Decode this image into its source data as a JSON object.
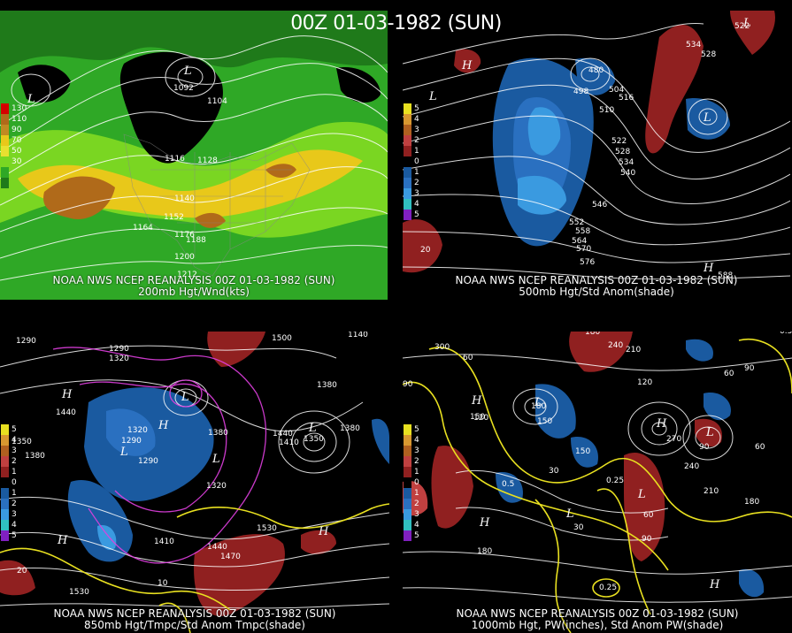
{
  "title": "00Z 01-03-1982 (SUN)",
  "panels": [
    {
      "caption1": "NOAA NWS NCEP REANALYSIS 00Z 01-03-1982 (SUN)",
      "caption2": "200mb Hgt/Wnd(kts)",
      "legend": [
        {
          "label": "130",
          "color": "#d40000"
        },
        {
          "label": "110",
          "color": "#b06a1a"
        },
        {
          "label": "90",
          "color": "#c08a22"
        },
        {
          "label": "70",
          "color": "#e8c81a"
        },
        {
          "label": "50",
          "color": "#e8e030"
        },
        {
          "label": "30",
          "color": "#7ad622"
        },
        {
          "label": "",
          "color": "#2fa826"
        },
        {
          "label": "",
          "color": "#1f7a1a"
        }
      ],
      "contours": [
        "1092",
        "1104",
        "1116",
        "1128",
        "1140",
        "1152",
        "1164",
        "1176",
        "1188",
        "1200",
        "1212"
      ]
    },
    {
      "caption1": "NOAA NWS NCEP REANALYSIS 00Z 01-03-1982 (SUN)",
      "caption2": "500mb Hgt/Std Anom(shade)",
      "legend": [
        {
          "label": "5",
          "color": "#e8e020"
        },
        {
          "label": "4",
          "color": "#d89830"
        },
        {
          "label": "3",
          "color": "#b06020"
        },
        {
          "label": "2",
          "color": "#c04040"
        },
        {
          "label": "1",
          "color": "#902020"
        },
        {
          "label": "0",
          "color": "#000"
        },
        {
          "label": "1",
          "color": "#1a5aa0"
        },
        {
          "label": "2",
          "color": "#2a70c0"
        },
        {
          "label": "3",
          "color": "#3a9ae0"
        },
        {
          "label": "4",
          "color": "#30c0c0"
        },
        {
          "label": "5",
          "color": "#8020c0"
        }
      ],
      "contours": [
        "498",
        "504",
        "510",
        "516",
        "522",
        "528",
        "534",
        "540",
        "546",
        "552",
        "558",
        "564",
        "570",
        "576",
        "588"
      ]
    },
    {
      "caption1": "NOAA NWS NCEP REANALYSIS 00Z 01-03-1982 (SUN)",
      "caption2": "850mb Hgt/Tmpc/Std Anom Tmpc(shade)",
      "legend": [
        {
          "label": "5",
          "color": "#e8e020"
        },
        {
          "label": "4",
          "color": "#d89830"
        },
        {
          "label": "3",
          "color": "#b06020"
        },
        {
          "label": "2",
          "color": "#c04040"
        },
        {
          "label": "1",
          "color": "#902020"
        },
        {
          "label": "0",
          "color": "#000"
        },
        {
          "label": "1",
          "color": "#1a5aa0"
        },
        {
          "label": "2",
          "color": "#2a70c0"
        },
        {
          "label": "3",
          "color": "#3a9ae0"
        },
        {
          "label": "4",
          "color": "#30c0c0"
        },
        {
          "label": "5",
          "color": "#8020c0"
        }
      ],
      "contours": [
        "1290",
        "1320",
        "1350",
        "1380",
        "1410",
        "1440",
        "1470",
        "1500",
        "1530"
      ]
    },
    {
      "caption1": "NOAA NWS NCEP REANALYSIS 00Z 01-03-1982 (SUN)",
      "caption2": "1000mb Hgt, PW(inches), Std Anom PW(shade)",
      "legend": [
        {
          "label": "5",
          "color": "#e8e020"
        },
        {
          "label": "4",
          "color": "#d89830"
        },
        {
          "label": "3",
          "color": "#b06020"
        },
        {
          "label": "2",
          "color": "#c04040"
        },
        {
          "label": "1",
          "color": "#902020"
        },
        {
          "label": "0",
          "color": "#000"
        },
        {
          "label": "1",
          "color": "#1a5aa0"
        },
        {
          "label": "2",
          "color": "#2a70c0"
        },
        {
          "label": "3",
          "color": "#3a9ae0"
        },
        {
          "label": "4",
          "color": "#30c0c0"
        },
        {
          "label": "5",
          "color": "#8020c0"
        }
      ],
      "contours": [
        "30",
        "60",
        "90",
        "120",
        "150",
        "180",
        "210",
        "240",
        "270"
      ]
    }
  ]
}
